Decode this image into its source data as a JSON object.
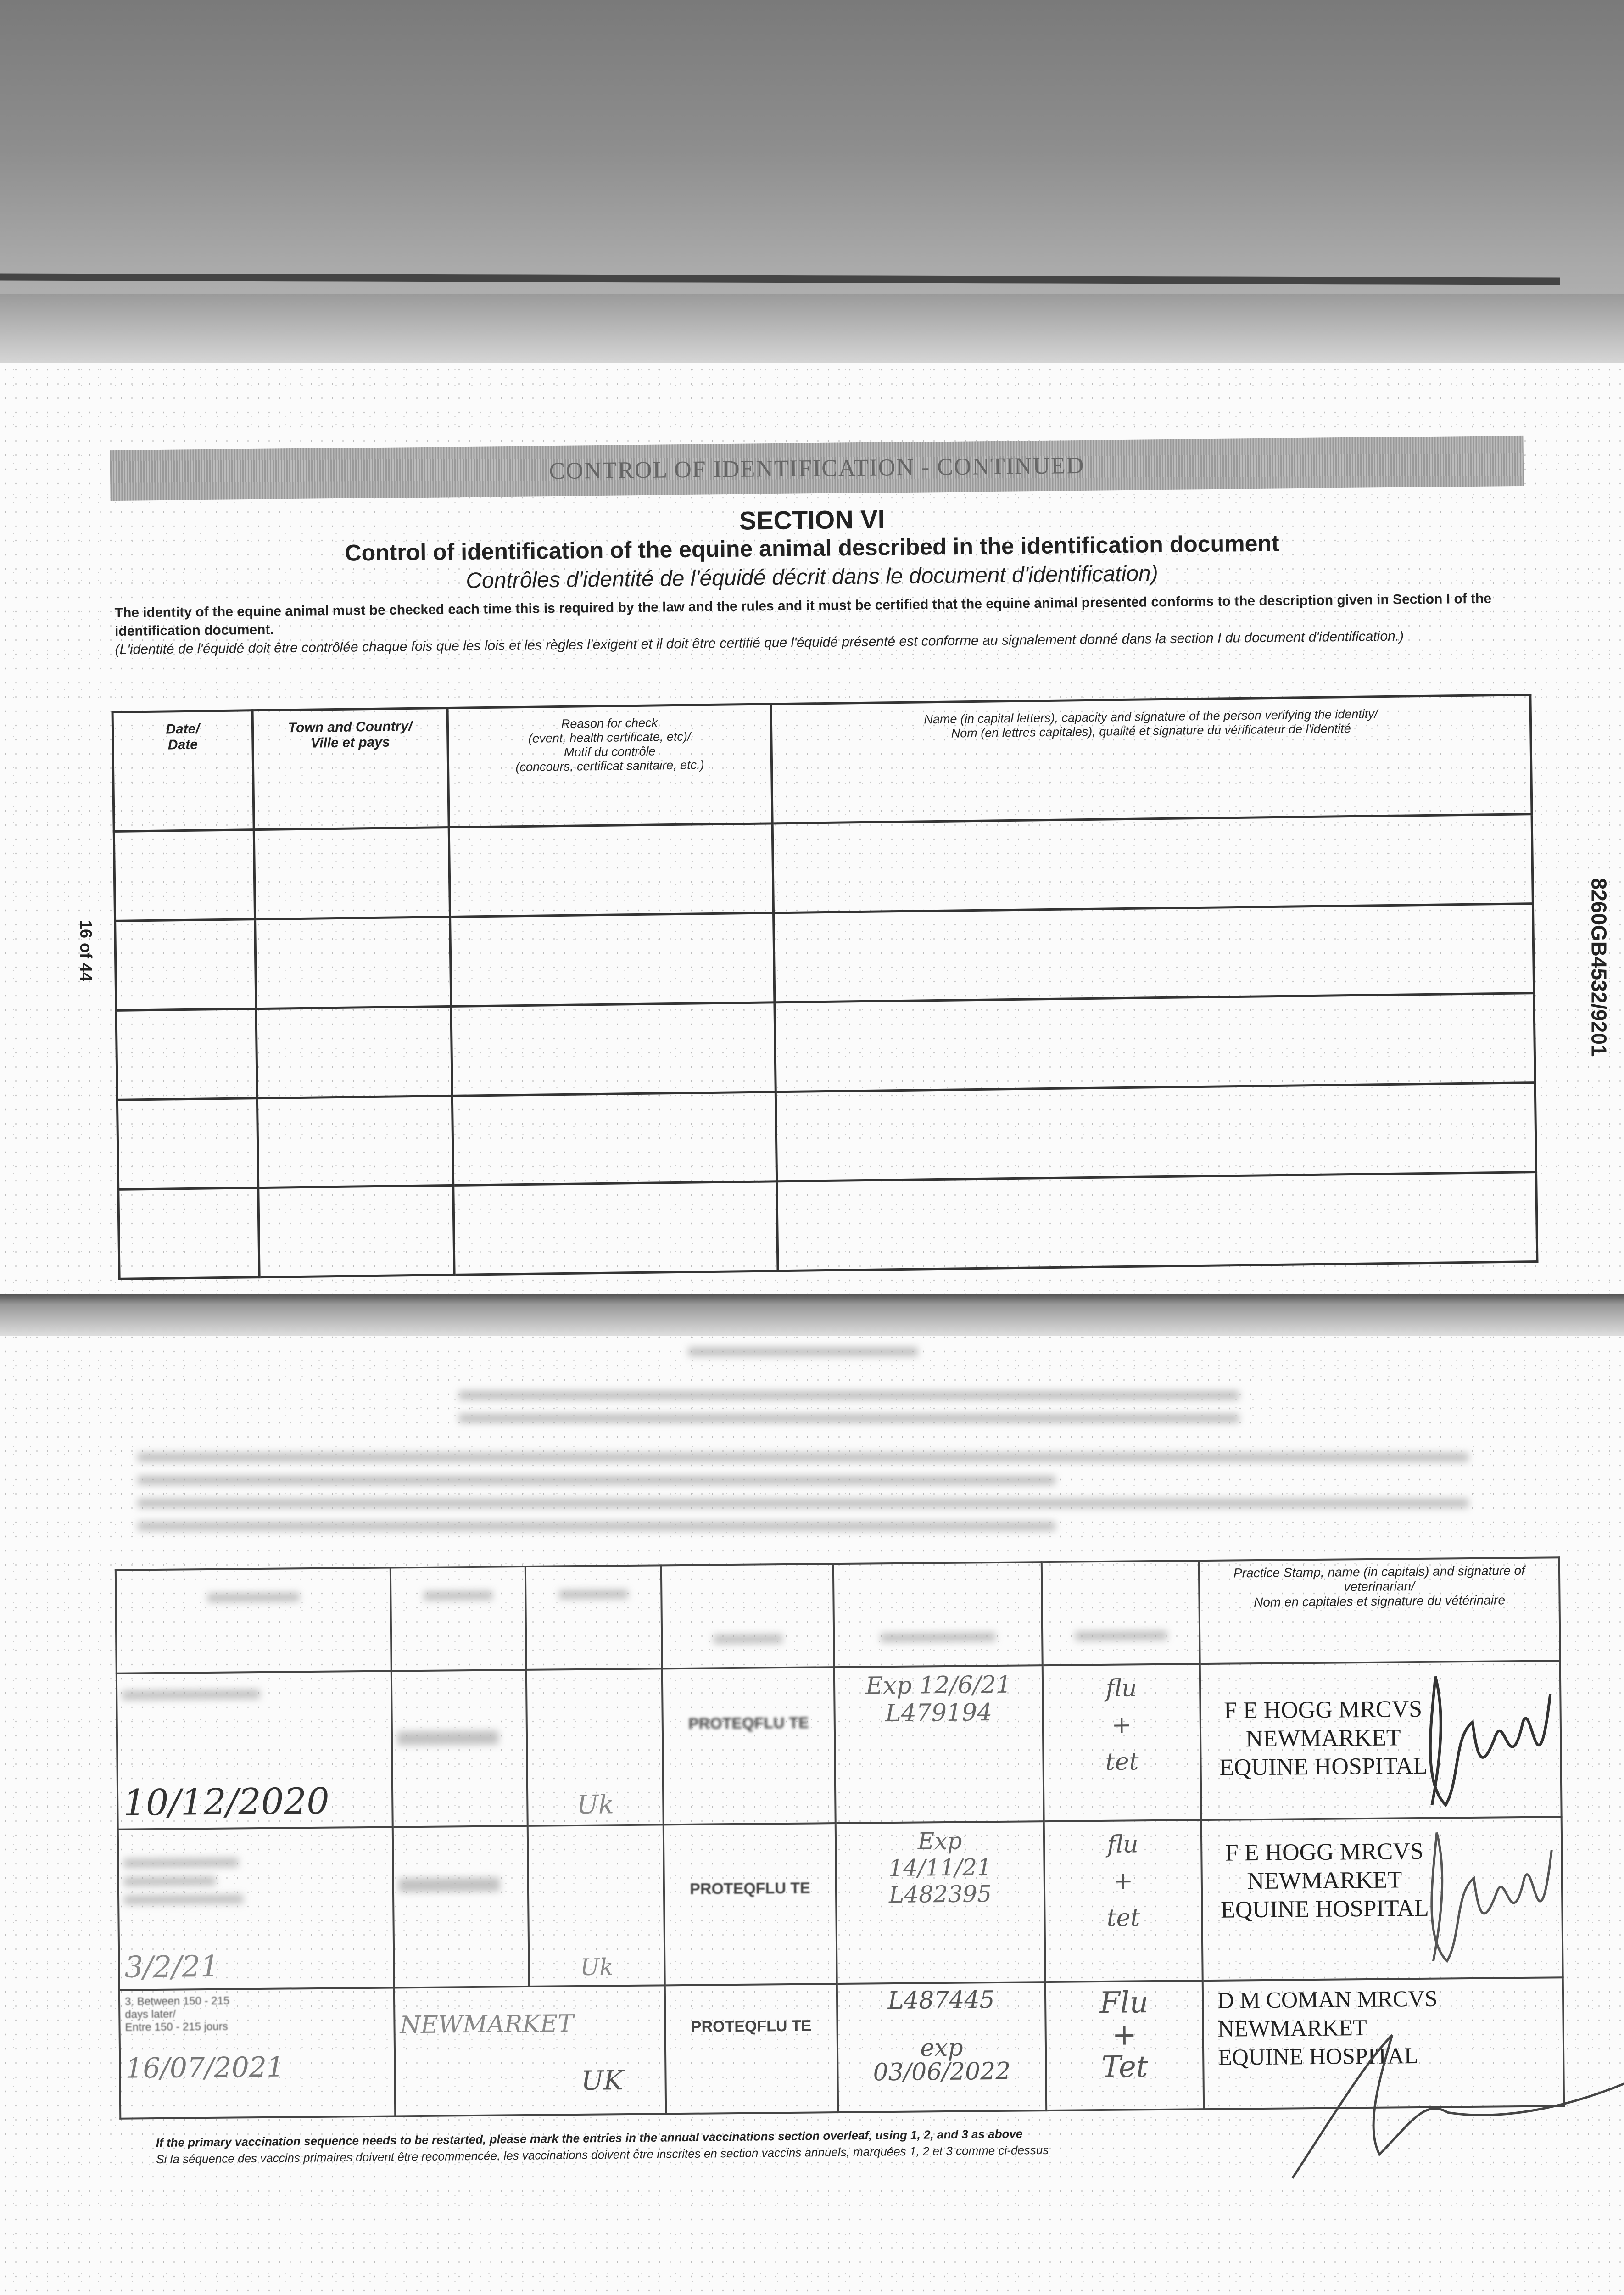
{
  "banner": "CONTROL OF IDENTIFICATION - CONTINUED",
  "section": "SECTION VI",
  "title_en": "Control of identification of the equine animal described in the identification document",
  "title_fr": "Contrôles d'identité de l'équidé décrit dans le document d'identification)",
  "intro_en": "The identity of the equine animal must be checked each time this is required by the law and the rules and it must be certified that the equine animal presented conforms to the description given in Section I of the identification document.",
  "intro_fr": "(L'identité de l'équidé doit être contrôlée chaque fois que les lois et les règles l'exigent et il doit être certifié que l'équidé présenté est conforme au signalement donné dans la section I du document d'identification.)",
  "page_number": "16 of 44",
  "doc_number": "8260GB4532/9201",
  "id_table": {
    "headers": [
      "Date/\nDate",
      "Town and Country/\nVille et pays",
      "Reason for check\n(event, health certificate, etc)/\nMotif du contrôle\n(concours, certificat sanitaire, etc.)",
      "Name (in capital letters), capacity and signature of the person verifying the identity/\nNom (en lettres capitales), qualité et signature du vérificateur de l'identité"
    ],
    "rows": 5
  },
  "vacc_table": {
    "vet_header": "Practice Stamp, name (in capitals) and signature of veterinarian/\nNom en capitales et signature du vétérinaire",
    "rows": [
      {
        "date": "10/12/2020",
        "place": "",
        "country": "Uk",
        "vaccine": "PROTEQFLU TE",
        "batch": "Exp 12/6/21\nL479194",
        "disease": "flu\n+\ntet",
        "stamp": "F E HOGG MRCVS\nNEWMARKET\nEQUINE HOSPITAL",
        "label": ""
      },
      {
        "date": "3/2/21",
        "place": "",
        "country": "Uk",
        "vaccine": "PROTEQFLU TE",
        "batch": "Exp\n14/11/21\nL482395",
        "disease": "flu\n+\ntet",
        "stamp": "F E HOGG MRCVS\nNEWMARKET\nEQUINE HOSPITAL",
        "label": ""
      },
      {
        "date": "16/07/2021",
        "place": "NEWMARKET",
        "country": "UK",
        "vaccine": "PROTEQFLU TE",
        "batch": "L487445\n\nexp\n03/06/2022",
        "disease": "Flu\n+\nTet",
        "stamp": "D M COMAN MRCVS\nNEWMARKET\nEQUINE HOSPITAL",
        "label": "3. Between 150 - 215\ndays later/\nEntre 150 - 215 jours"
      }
    ]
  },
  "footnote_en": "If the primary vaccination sequence needs to be restarted, please mark the entries in the annual vaccinations section overleaf, using 1, 2, and 3 as above",
  "footnote_fr": "Si la séquence des vaccins primaires doivent être recommencée, les vaccinations doivent être inscrites en section vaccins annuels, marquées 1, 2 et 3 comme ci-dessus"
}
